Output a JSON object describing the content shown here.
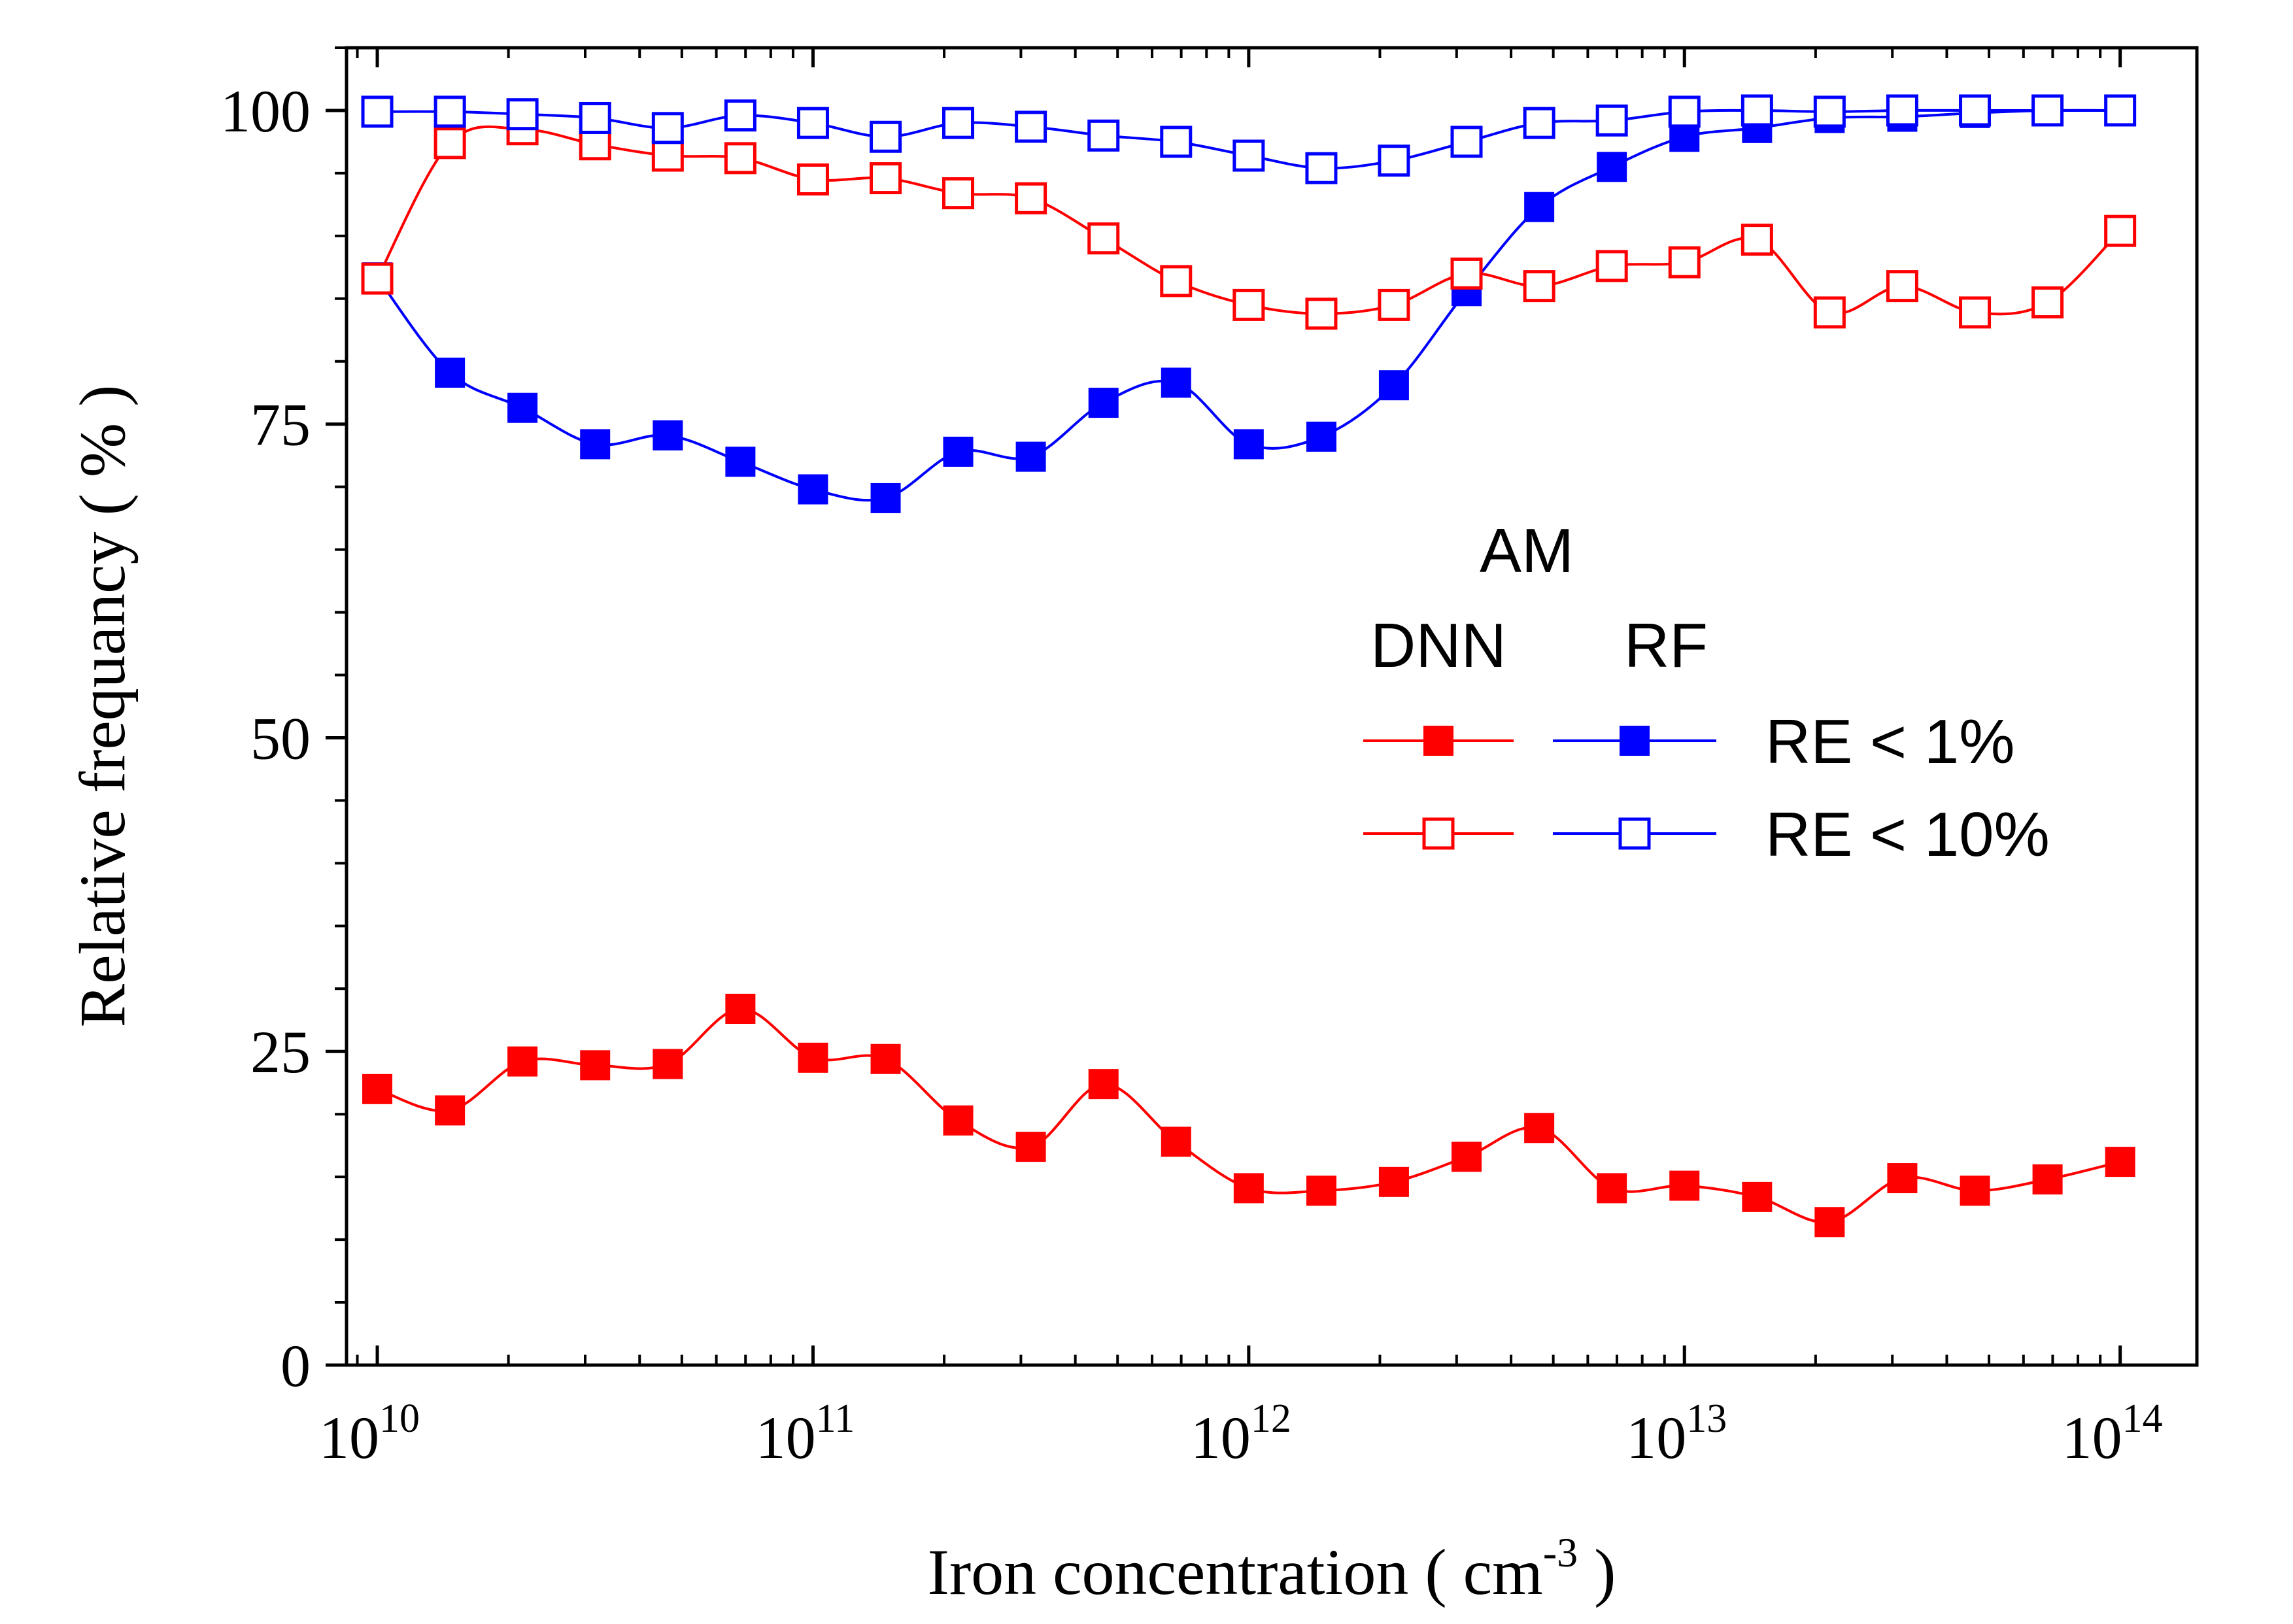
{
  "colors": {
    "dnn": "#ff0000",
    "rf": "#0000ff",
    "axis": "#000000",
    "background": "#ffffff"
  },
  "chart_data": {
    "type": "line",
    "title": "",
    "xlabel": "Iron concentration  ( cm",
    "xlabel_unit_exponent": "-3",
    "xlabel_close": " )",
    "ylabel": "Relative frequancy ( % )",
    "xscale": "log",
    "xlim": [
      8500000000.0,
      150000000000000.0
    ],
    "ylim": [
      0,
      105
    ],
    "x_ticks": [
      {
        "value": 10000000000.0,
        "base": "10",
        "exp": "10"
      },
      {
        "value": 100000000000.0,
        "base": "10",
        "exp": "11"
      },
      {
        "value": 1000000000000.0,
        "base": "10",
        "exp": "12"
      },
      {
        "value": 10000000000000.0,
        "base": "10",
        "exp": "13"
      },
      {
        "value": 100000000000000.0,
        "base": "10",
        "exp": "14"
      }
    ],
    "y_ticks": [
      {
        "value": 0,
        "label": "0"
      },
      {
        "value": 25,
        "label": "25"
      },
      {
        "value": 50,
        "label": "50"
      },
      {
        "value": 75,
        "label": "75"
      },
      {
        "value": 100,
        "label": "100"
      }
    ],
    "y_minor_step": 5,
    "grid": false,
    "legend": {
      "placement": "center-right",
      "header": "AM",
      "col1": "DNN",
      "col2": "RF",
      "rows": [
        "RE < 1%",
        "RE < 10%"
      ]
    },
    "x": [
      10000000000.0,
      14680000000.0,
      21540000000.0,
      31620000000.0,
      46420000000.0,
      68130000000.0,
      100000000000.0,
      146800000000.0,
      215400000000.0,
      316200000000.0,
      464200000000.0,
      681300000000.0,
      1000000000000.0,
      1468000000000.0,
      2154000000000.0,
      3162000000000.0,
      4642000000000.0,
      6813000000000.0,
      10000000000000.0,
      14680000000000.0,
      21540000000000.0,
      31620000000000.0,
      46420000000000.0,
      68130000000000.0,
      100000000000000.0
    ],
    "series": [
      {
        "model": "DNN",
        "criterion": "RE < 1%",
        "color": "#ff0000",
        "marker": "filled-square",
        "values": [
          22.0,
          20.3,
          24.2,
          23.9,
          24.0,
          28.4,
          24.5,
          24.4,
          19.5,
          17.4,
          22.4,
          17.8,
          14.1,
          13.9,
          14.6,
          16.6,
          18.9,
          14.1,
          14.3,
          13.4,
          11.4,
          14.9,
          13.9,
          14.8,
          16.2
        ]
      },
      {
        "model": "RF",
        "criterion": "RE < 1%",
        "color": "#0000ff",
        "marker": "filled-square",
        "values": [
          86.7,
          79.1,
          76.3,
          73.4,
          74.1,
          72.0,
          69.8,
          69.1,
          72.8,
          72.4,
          76.7,
          78.3,
          73.4,
          74.0,
          78.1,
          85.6,
          92.3,
          95.5,
          97.9,
          98.6,
          99.4,
          99.5,
          99.8,
          100.0,
          100.0
        ]
      },
      {
        "model": "DNN",
        "criterion": "RE < 10%",
        "color": "#ff0000",
        "marker": "open-square",
        "values": [
          86.6,
          97.4,
          98.5,
          97.3,
          96.4,
          96.2,
          94.5,
          94.6,
          93.4,
          93.0,
          89.8,
          86.4,
          84.5,
          83.8,
          84.5,
          87.0,
          86.0,
          87.6,
          87.9,
          89.7,
          83.9,
          86.0,
          83.9,
          84.7,
          90.4
        ]
      },
      {
        "model": "RF",
        "criterion": "RE < 10%",
        "color": "#0000ff",
        "marker": "open-square",
        "values": [
          99.9,
          99.9,
          99.7,
          99.4,
          98.6,
          99.6,
          99.0,
          97.9,
          99.0,
          98.7,
          98.0,
          97.5,
          96.4,
          95.4,
          96.0,
          97.5,
          99.0,
          99.2,
          99.9,
          100.0,
          99.9,
          100.0,
          100.0,
          100.0,
          100.0
        ]
      }
    ]
  }
}
